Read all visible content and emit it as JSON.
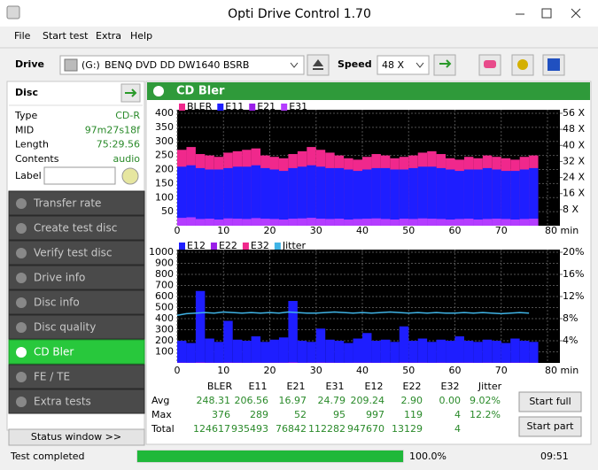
{
  "window": {
    "title": "Opti Drive Control 1.70"
  },
  "menu": [
    "File",
    "Start test",
    "Extra",
    "Help"
  ],
  "toolbar": {
    "drive_label": "Drive",
    "drive_letter": "(G:)",
    "drive": "BENQ DVD DD DW1640 BSRB",
    "speed_label": "Speed",
    "speed": "48 X"
  },
  "disc": {
    "title": "Disc",
    "rows": [
      [
        "Type",
        "CD-R"
      ],
      [
        "MID",
        "97m27s18f"
      ],
      [
        "Length",
        "75:29.56"
      ],
      [
        "Contents",
        "audio"
      ]
    ],
    "label": "Label"
  },
  "nav": [
    {
      "label": "Transfer rate"
    },
    {
      "label": "Create test disc"
    },
    {
      "label": "Verify test disc"
    },
    {
      "label": "Drive info"
    },
    {
      "label": "Disc info"
    },
    {
      "label": "Disc quality"
    },
    {
      "label": "CD Bler",
      "active": true
    },
    {
      "label": "FE / TE"
    },
    {
      "label": "Extra tests"
    }
  ],
  "status_window": "Status window >>",
  "panel": {
    "title": "CD Bler"
  },
  "chart_data": [
    {
      "type": "bar",
      "x": [
        0,
        2,
        4,
        6,
        8,
        10,
        12,
        14,
        16,
        18,
        20,
        22,
        24,
        26,
        28,
        30,
        32,
        34,
        36,
        38,
        40,
        42,
        44,
        46,
        48,
        50,
        52,
        54,
        56,
        58,
        60,
        62,
        64,
        66,
        68,
        70,
        72,
        74,
        76
      ],
      "series": [
        {
          "name": "BLER",
          "color": "#f0288c",
          "values": [
            270,
            280,
            255,
            250,
            245,
            260,
            265,
            270,
            275,
            250,
            245,
            240,
            255,
            265,
            280,
            270,
            260,
            250,
            240,
            235,
            245,
            255,
            250,
            240,
            245,
            250,
            260,
            265,
            255,
            240,
            235,
            245,
            240,
            250,
            245,
            240,
            235,
            245,
            250
          ]
        },
        {
          "name": "E11",
          "color": "#1e1eff",
          "values": [
            210,
            215,
            205,
            200,
            200,
            205,
            210,
            210,
            215,
            205,
            200,
            195,
            205,
            210,
            215,
            210,
            205,
            205,
            200,
            195,
            200,
            205,
            205,
            200,
            200,
            205,
            210,
            210,
            205,
            200,
            195,
            200,
            200,
            205,
            200,
            195,
            195,
            200,
            205
          ]
        },
        {
          "name": "E21",
          "color": "#9a1ee8",
          "values": [
            18,
            20,
            16,
            17,
            15,
            18,
            17,
            16,
            19,
            17,
            16,
            15,
            17,
            18,
            20,
            17,
            16,
            17,
            15,
            16,
            17,
            18,
            16,
            15,
            17,
            16,
            18,
            17,
            16,
            15,
            16,
            17,
            15,
            16,
            17,
            16,
            15,
            16,
            17
          ]
        },
        {
          "name": "E31",
          "color": "#b43cff",
          "values": [
            28,
            30,
            24,
            25,
            22,
            26,
            25,
            24,
            27,
            25,
            24,
            22,
            25,
            26,
            28,
            25,
            24,
            25,
            22,
            24,
            25,
            26,
            24,
            22,
            25,
            24,
            26,
            25,
            24,
            22,
            24,
            25,
            22,
            24,
            25,
            24,
            22,
            24,
            25
          ]
        }
      ],
      "xlim": [
        0,
        80
      ],
      "xticks": [
        0,
        10,
        20,
        30,
        40,
        50,
        60,
        70,
        {
          "value": 80,
          "label": "80 min"
        }
      ],
      "ylim": [
        0,
        400
      ],
      "yticks": [
        50,
        100,
        150,
        200,
        250,
        300,
        350,
        400
      ],
      "y2lim": [
        0,
        56
      ],
      "y2ticks": [
        {
          "value": 8,
          "label": "8 X"
        },
        {
          "value": 16,
          "label": "16 X"
        },
        {
          "value": 24,
          "label": "24 X"
        },
        {
          "value": 32,
          "label": "32 X"
        },
        {
          "value": 40,
          "label": "40 X"
        },
        {
          "value": 48,
          "label": "48 X"
        },
        {
          "value": 56,
          "label": "56 X"
        }
      ],
      "grid": true
    },
    {
      "type": "bar",
      "x": [
        0,
        2,
        4,
        6,
        8,
        10,
        12,
        14,
        16,
        18,
        20,
        22,
        24,
        26,
        28,
        30,
        32,
        34,
        36,
        38,
        40,
        42,
        44,
        46,
        48,
        50,
        52,
        54,
        56,
        58,
        60,
        62,
        64,
        66,
        68,
        70,
        72,
        74,
        76
      ],
      "series": [
        {
          "name": "E12",
          "color": "#1e1eff",
          "values": [
            200,
            180,
            650,
            220,
            190,
            380,
            210,
            200,
            240,
            190,
            210,
            230,
            560,
            200,
            190,
            310,
            210,
            200,
            180,
            220,
            270,
            200,
            210,
            190,
            330,
            200,
            220,
            190,
            210,
            200,
            240,
            200,
            190,
            210,
            200,
            180,
            220,
            200,
            190
          ]
        },
        {
          "name": "E22",
          "color": "#9a1ee8",
          "values": [
            3,
            2,
            5,
            3,
            2,
            4,
            3,
            2,
            3,
            2,
            3,
            3,
            6,
            2,
            3,
            4,
            3,
            2,
            2,
            3,
            3,
            2,
            3,
            2,
            4,
            3,
            3,
            2,
            3,
            2,
            3,
            3,
            2,
            3,
            2,
            2,
            3,
            3,
            2
          ]
        },
        {
          "name": "E32",
          "color": "#f0288c",
          "values": [
            0,
            0,
            0,
            0,
            0,
            0,
            0,
            0,
            0,
            0,
            0,
            0,
            0,
            0,
            0,
            0,
            0,
            0,
            0,
            0,
            0,
            0,
            0,
            0,
            0,
            0,
            0,
            0,
            0,
            0,
            0,
            0,
            0,
            0,
            0,
            0,
            0,
            0,
            0
          ]
        },
        {
          "name": "Jitter",
          "color": "#40b4e6",
          "type": "line",
          "axis": "y2",
          "values": [
            8.6,
            8.9,
            9.0,
            9.1,
            9.0,
            9.2,
            9.1,
            9.0,
            9.1,
            9.0,
            9.1,
            9.0,
            9.2,
            9.1,
            9.0,
            9.0,
            9.1,
            9.2,
            9.1,
            9.0,
            9.1,
            9.0,
            9.1,
            9.2,
            9.1,
            9.0,
            9.1,
            9.0,
            9.1,
            9.0,
            9.0,
            9.1,
            9.0,
            9.1,
            9.0,
            8.9,
            9.0,
            9.1,
            9.0
          ]
        }
      ],
      "xlim": [
        0,
        80
      ],
      "xticks": [
        0,
        10,
        20,
        30,
        40,
        50,
        60,
        70,
        {
          "value": 80,
          "label": "80 min"
        }
      ],
      "ylim": [
        0,
        1000
      ],
      "yticks": [
        100,
        200,
        300,
        400,
        500,
        600,
        700,
        800,
        900,
        1000
      ],
      "y2lim": [
        0,
        20
      ],
      "y2ticks": [
        {
          "value": 4,
          "label": "4%"
        },
        {
          "value": 8,
          "label": "8%"
        },
        {
          "value": 12,
          "label": "12%"
        },
        {
          "value": 16,
          "label": "16%"
        },
        {
          "value": 20,
          "label": "20%"
        }
      ],
      "grid": true
    }
  ],
  "stats": {
    "columns": [
      "BLER",
      "E11",
      "E21",
      "E31",
      "E12",
      "E22",
      "E32",
      "Jitter"
    ],
    "rows": [
      [
        "Avg",
        "248.31",
        "206.56",
        "16.97",
        "24.79",
        "209.24",
        "2.90",
        "0.00",
        "9.02%"
      ],
      [
        "Max",
        "376",
        "289",
        "52",
        "95",
        "997",
        "119",
        "4",
        "12.2%"
      ],
      [
        "Total",
        "124617",
        "935493",
        "76842",
        "112282",
        "947670",
        "13129",
        "4"
      ]
    ]
  },
  "buttons": [
    "Start full",
    "Start part"
  ],
  "status": {
    "text": "Test completed",
    "percent": 100,
    "percent_label": "100.0%",
    "time": "09:51"
  }
}
